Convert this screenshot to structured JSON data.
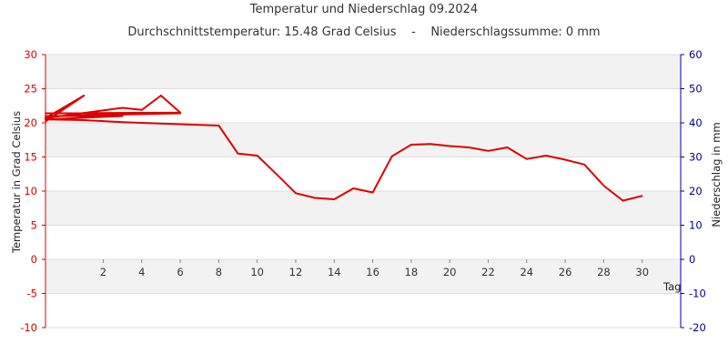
{
  "title": "Temperatur und Niederschlag 09.2024",
  "subtitle_temperature": "Durchschnittstemperatur: 15.48 Grad Celsius",
  "subtitle_separator": "-",
  "subtitle_precipitation": "Niederschlagssumme: 0 mm",
  "chart_data": {
    "type": "line",
    "title": "Temperatur und Niederschlag 09.2024",
    "xlabel": "Tag",
    "ylabel": "Temperatur in Grad Celsius",
    "y2label": "Niederschlag in mm",
    "xlim": [
      -1,
      32
    ],
    "ylim": [
      -10,
      30
    ],
    "y2lim": [
      -20,
      60
    ],
    "x_ticks": [
      2,
      4,
      6,
      8,
      10,
      12,
      14,
      16,
      18,
      20,
      22,
      24,
      26,
      28,
      30
    ],
    "y_ticks": [
      -10,
      -5,
      0,
      5,
      10,
      15,
      20,
      25,
      30
    ],
    "y2_ticks": [
      -20,
      -10,
      0,
      10,
      20,
      30,
      40,
      50,
      60
    ],
    "grid": "horizontal bands",
    "colors": {
      "temperature": "#dd0000",
      "left_axis": "#dd0000",
      "right_axis": "#000099",
      "band": "#f2f2f2",
      "gridline": "#dddddd"
    },
    "series": [
      {
        "values": [
          [
            -1,
            20.2
          ],
          [
            1,
            24.0
          ],
          [
            -1,
            20.7
          ],
          [
            3,
            22.2
          ],
          [
            4,
            21.9
          ],
          [
            5,
            24.0
          ],
          [
            6,
            21.5
          ],
          [
            -1,
            21.4
          ],
          [
            6,
            21.4
          ],
          [
            -1,
            21.0
          ],
          [
            3,
            21.0
          ],
          [
            -1,
            20.5
          ],
          [
            1,
            20.4
          ],
          [
            3,
            20.1
          ],
          [
            6,
            19.8
          ],
          [
            8,
            19.6
          ],
          [
            9,
            15.5
          ],
          [
            10,
            15.2
          ],
          [
            11,
            12.5
          ],
          [
            12,
            9.7
          ],
          [
            13,
            9.0
          ],
          [
            14,
            8.8
          ],
          [
            15,
            10.4
          ],
          [
            16,
            9.8
          ],
          [
            17,
            15.1
          ],
          [
            18,
            16.8
          ],
          [
            19,
            16.9
          ],
          [
            20,
            16.6
          ],
          [
            21,
            16.4
          ],
          [
            22,
            15.9
          ],
          [
            23,
            16.4
          ],
          [
            24,
            14.7
          ],
          [
            25,
            15.2
          ],
          [
            26,
            14.6
          ],
          [
            27,
            13.9
          ],
          [
            28,
            10.8
          ],
          [
            29,
            8.6
          ],
          [
            30,
            9.3
          ]
        ]
      }
    ]
  }
}
